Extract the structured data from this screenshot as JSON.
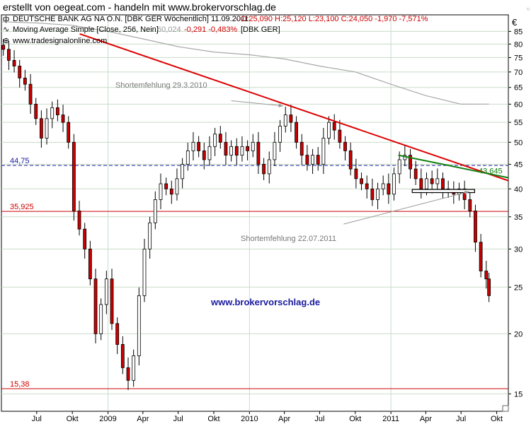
{
  "header": {
    "text": "erstellt von oegeat.com - handeln mit www.brokervorschlag.de"
  },
  "chart_data": {
    "type": "candlestick",
    "legend_line1": {
      "instrument": "DEUTSCHE BANK AG NA O.N. [DBK GER  Wöchentlich] 11.09.2011",
      "ohlc": "- O:25,090 H:25,120 L:23,100 C:24,050 -1,970 -7,571%"
    },
    "legend_line2": {
      "name": "Moving Average Simple [Close, 256, Nein]",
      "value": "60,024",
      "change": "-0,291 -0,483%",
      "tag": "[DBK GER]"
    },
    "source": "www.tradesignalonline.com",
    "watermark": "www.brokervorschlag.de",
    "currency_symbol": "€",
    "corner_mark": "☜",
    "y_scale": "log",
    "y_range": [
      13.8,
      92
    ],
    "y_ticks": [
      85,
      80,
      75,
      70,
      65,
      60,
      55,
      50,
      45,
      40,
      35,
      30,
      25,
      20,
      15
    ],
    "x_ticks": [
      {
        "date": "2008-07-01",
        "label": "Jul"
      },
      {
        "date": "2008-10-01",
        "label": "Okt"
      },
      {
        "date": "2009-01-01",
        "label": "2009"
      },
      {
        "date": "2009-04-01",
        "label": "Apr"
      },
      {
        "date": "2009-07-01",
        "label": "Jul"
      },
      {
        "date": "2009-10-01",
        "label": "Okt"
      },
      {
        "date": "2010-01-01",
        "label": "2010"
      },
      {
        "date": "2010-04-01",
        "label": "Apr"
      },
      {
        "date": "2010-07-01",
        "label": "Jul"
      },
      {
        "date": "2010-10-01",
        "label": "Okt"
      },
      {
        "date": "2011-01-01",
        "label": "2011"
      },
      {
        "date": "2011-04-01",
        "label": "Apr"
      },
      {
        "date": "2011-07-01",
        "label": "Jul"
      },
      {
        "date": "2011-10-01",
        "label": "Okt"
      }
    ],
    "x_range": [
      "2008-04-01",
      "2011-10-31"
    ],
    "year_gridlines": [
      "2009-01-01",
      "2010-01-01",
      "2011-01-01"
    ],
    "horizontal_levels": [
      {
        "value": 44.75,
        "label": "44,75",
        "color": "#1a1aa0",
        "style": "dashed"
      },
      {
        "value": 35.925,
        "label": "35,925",
        "color": "#cc0000",
        "style": "solid"
      },
      {
        "value": 15.38,
        "label": "15,38",
        "color": "#cc0000",
        "style": "solid"
      }
    ],
    "trendlines": [
      {
        "name": "red downtrend",
        "color": "#dd0000",
        "from": [
          "2008-10-20",
          84.0
        ],
        "to": [
          "2011-10-31",
          41.6
        ]
      },
      {
        "name": "green trendline",
        "color": "#108010",
        "label": "43,645",
        "from": [
          "2011-01-20",
          47.0
        ],
        "to": [
          "2011-10-31",
          42.2
        ]
      }
    ],
    "support_box": {
      "from": [
        "2011-02-25",
        39.9
      ],
      "to": [
        "2011-08-05",
        39.3
      ]
    },
    "annotations": [
      {
        "text": "Shortemfehlung 29.3.2010",
        "arrow_from": [
          "2009-11-15",
          61.0
        ],
        "arrow_to": [
          "2010-03-29",
          59.5
        ]
      },
      {
        "text": "Shortemfehlung  22.07.2011",
        "arrow_from": [
          "2010-09-01",
          33.8
        ],
        "arrow_to": [
          "2011-07-22",
          39.5
        ]
      }
    ],
    "moving_average": [
      [
        "2008-04-01",
        89
      ],
      [
        "2008-07-01",
        88.5
      ],
      [
        "2008-10-01",
        87.5
      ],
      [
        "2009-01-01",
        85
      ],
      [
        "2009-04-01",
        82
      ],
      [
        "2009-07-01",
        79
      ],
      [
        "2009-10-01",
        77
      ],
      [
        "2010-01-01",
        76
      ],
      [
        "2010-04-01",
        74.5
      ],
      [
        "2010-07-01",
        72
      ],
      [
        "2010-10-01",
        70
      ],
      [
        "2011-01-01",
        66
      ],
      [
        "2011-04-01",
        62.5
      ],
      [
        "2011-07-01",
        60
      ],
      [
        "2011-09-11",
        60.02
      ]
    ],
    "closes": [
      [
        "2008-04-06",
        78
      ],
      [
        "2008-04-20",
        74
      ],
      [
        "2008-05-04",
        72
      ],
      [
        "2008-05-18",
        68
      ],
      [
        "2008-06-01",
        66
      ],
      [
        "2008-06-15",
        60
      ],
      [
        "2008-06-29",
        56
      ],
      [
        "2008-07-13",
        51
      ],
      [
        "2008-07-27",
        56
      ],
      [
        "2008-08-10",
        59
      ],
      [
        "2008-08-24",
        57
      ],
      [
        "2008-09-07",
        55
      ],
      [
        "2008-09-21",
        50
      ],
      [
        "2008-10-05",
        36
      ],
      [
        "2008-10-19",
        33
      ],
      [
        "2008-11-02",
        30
      ],
      [
        "2008-11-16",
        26
      ],
      [
        "2008-11-30",
        20
      ],
      [
        "2008-12-14",
        23
      ],
      [
        "2008-12-28",
        26
      ],
      [
        "2009-01-11",
        21
      ],
      [
        "2009-01-25",
        19
      ],
      [
        "2009-02-08",
        17
      ],
      [
        "2009-02-22",
        16
      ],
      [
        "2009-03-08",
        18
      ],
      [
        "2009-03-22",
        24
      ],
      [
        "2009-04-05",
        30
      ],
      [
        "2009-04-19",
        34
      ],
      [
        "2009-05-03",
        38
      ],
      [
        "2009-05-17",
        41
      ],
      [
        "2009-05-31",
        40
      ],
      [
        "2009-06-14",
        39
      ],
      [
        "2009-06-28",
        42
      ],
      [
        "2009-07-12",
        45
      ],
      [
        "2009-07-26",
        48
      ],
      [
        "2009-08-09",
        50
      ],
      [
        "2009-08-23",
        48
      ],
      [
        "2009-09-06",
        46
      ],
      [
        "2009-09-20",
        49
      ],
      [
        "2009-10-04",
        52
      ],
      [
        "2009-10-18",
        50
      ],
      [
        "2009-11-01",
        47
      ],
      [
        "2009-11-15",
        49
      ],
      [
        "2009-11-29",
        47
      ],
      [
        "2009-12-13",
        49
      ],
      [
        "2009-12-27",
        48
      ],
      [
        "2010-01-10",
        50
      ],
      [
        "2010-01-24",
        45
      ],
      [
        "2010-02-07",
        43
      ],
      [
        "2010-02-21",
        46
      ],
      [
        "2010-03-07",
        50
      ],
      [
        "2010-03-21",
        54
      ],
      [
        "2010-04-04",
        57
      ],
      [
        "2010-04-18",
        55
      ],
      [
        "2010-05-02",
        50
      ],
      [
        "2010-05-16",
        47
      ],
      [
        "2010-05-30",
        45
      ],
      [
        "2010-06-13",
        47
      ],
      [
        "2010-06-27",
        45
      ],
      [
        "2010-07-11",
        51
      ],
      [
        "2010-07-25",
        55
      ],
      [
        "2010-08-08",
        53
      ],
      [
        "2010-08-22",
        50
      ],
      [
        "2010-09-05",
        48
      ],
      [
        "2010-09-19",
        44
      ],
      [
        "2010-10-03",
        42
      ],
      [
        "2010-10-17",
        41
      ],
      [
        "2010-10-31",
        40
      ],
      [
        "2010-11-14",
        38
      ],
      [
        "2010-11-28",
        40
      ],
      [
        "2010-12-12",
        41
      ],
      [
        "2010-12-26",
        39
      ],
      [
        "2011-01-09",
        43
      ],
      [
        "2011-01-23",
        46
      ],
      [
        "2011-02-06",
        47
      ],
      [
        "2011-02-20",
        44
      ],
      [
        "2011-03-06",
        42
      ],
      [
        "2011-03-20",
        40
      ],
      [
        "2011-04-03",
        42
      ],
      [
        "2011-04-17",
        41
      ],
      [
        "2011-05-01",
        42
      ],
      [
        "2011-05-15",
        40
      ],
      [
        "2011-05-29",
        39.5
      ],
      [
        "2011-06-12",
        39
      ],
      [
        "2011-06-26",
        40
      ],
      [
        "2011-07-10",
        38
      ],
      [
        "2011-07-24",
        36
      ],
      [
        "2011-08-07",
        31
      ],
      [
        "2011-08-21",
        27
      ],
      [
        "2011-09-04",
        26
      ],
      [
        "2011-09-11",
        24
      ]
    ]
  }
}
